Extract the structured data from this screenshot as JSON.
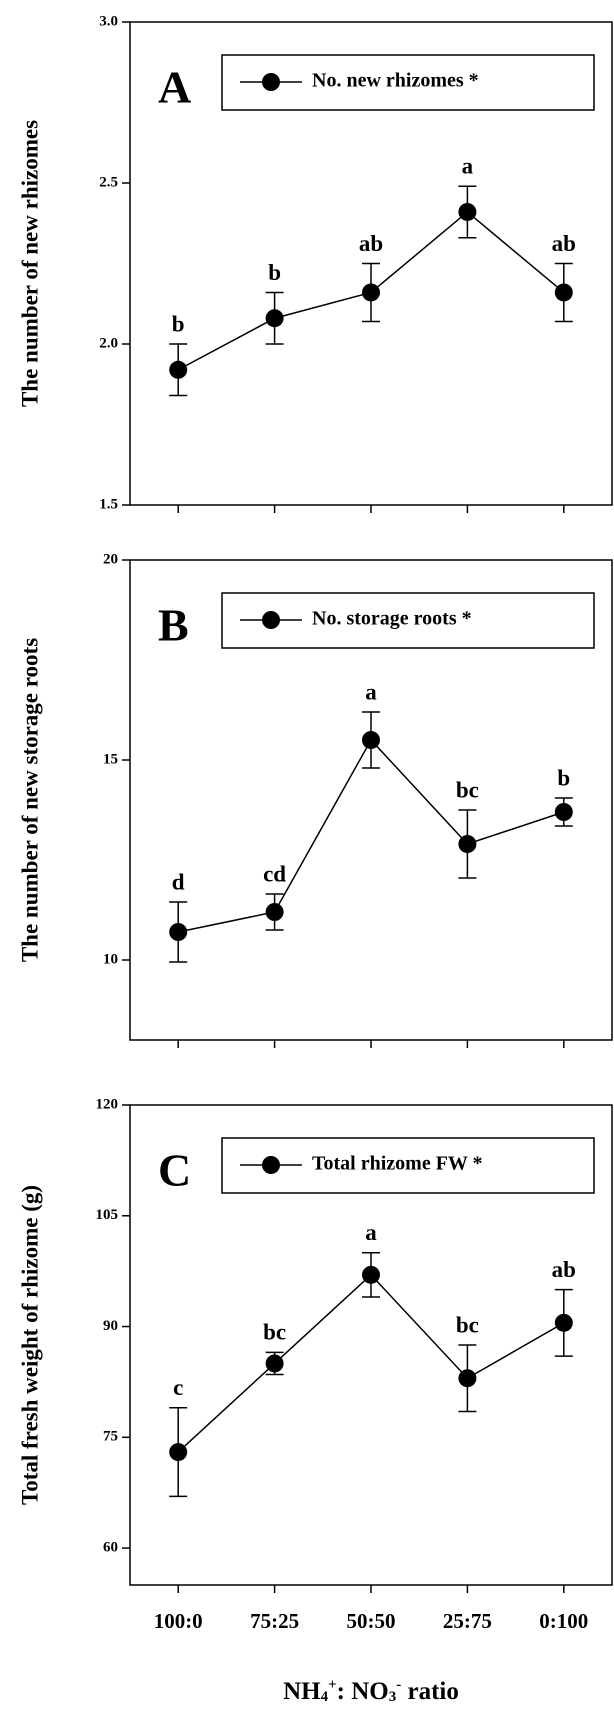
{
  "chart_data": [
    {
      "type": "line",
      "panel_label": "A",
      "ylabel": "The number of new rhizomes",
      "ylim": [
        1.5,
        3.0
      ],
      "yticks": [
        {
          "value": 1.5,
          "label": "1.5"
        },
        {
          "value": 2.0,
          "label": "2.0"
        },
        {
          "value": 2.5,
          "label": "2.5"
        },
        {
          "value": 3.0,
          "label": "3.0"
        }
      ],
      "series": [
        {
          "name": "No. new rhizomes *",
          "color": "#000000",
          "values": [
            1.92,
            2.08,
            2.16,
            2.41,
            2.16
          ],
          "errors": [
            0.08,
            0.08,
            0.09,
            0.08,
            0.09
          ]
        }
      ],
      "annotations": [
        "b",
        "b",
        "ab",
        "a",
        "ab"
      ]
    },
    {
      "type": "line",
      "panel_label": "B",
      "ylabel": "The number of new storage roots",
      "ylim": [
        8,
        20
      ],
      "yticks": [
        10,
        15,
        20
      ],
      "series": [
        {
          "name": "No. storage roots *",
          "color": "#000000",
          "values": [
            10.7,
            11.2,
            15.5,
            12.9,
            13.7
          ],
          "errors": [
            0.75,
            0.45,
            0.7,
            0.85,
            0.35
          ]
        }
      ],
      "annotations": [
        "d",
        "cd",
        "a",
        "bc",
        "b"
      ]
    },
    {
      "type": "line",
      "panel_label": "C",
      "ylabel": "Total fresh weight of rhizome (g)",
      "ylim": [
        55,
        120
      ],
      "yticks": [
        60,
        75,
        90,
        105,
        120
      ],
      "series": [
        {
          "name": "Total rhizome FW *",
          "color": "#000000",
          "values": [
            73,
            85,
            97,
            83,
            90.5
          ],
          "errors": [
            6,
            1.5,
            3,
            4.5,
            4.5
          ]
        }
      ],
      "annotations": [
        "c",
        "bc",
        "a",
        "bc",
        "ab"
      ],
      "categories": [
        "100:0",
        "75:25",
        "50:50",
        "25:75",
        "0:100"
      ],
      "xlabel_parts": [
        "NH",
        "4",
        "+",
        ": NO",
        "3",
        "-",
        " ratio"
      ]
    }
  ]
}
